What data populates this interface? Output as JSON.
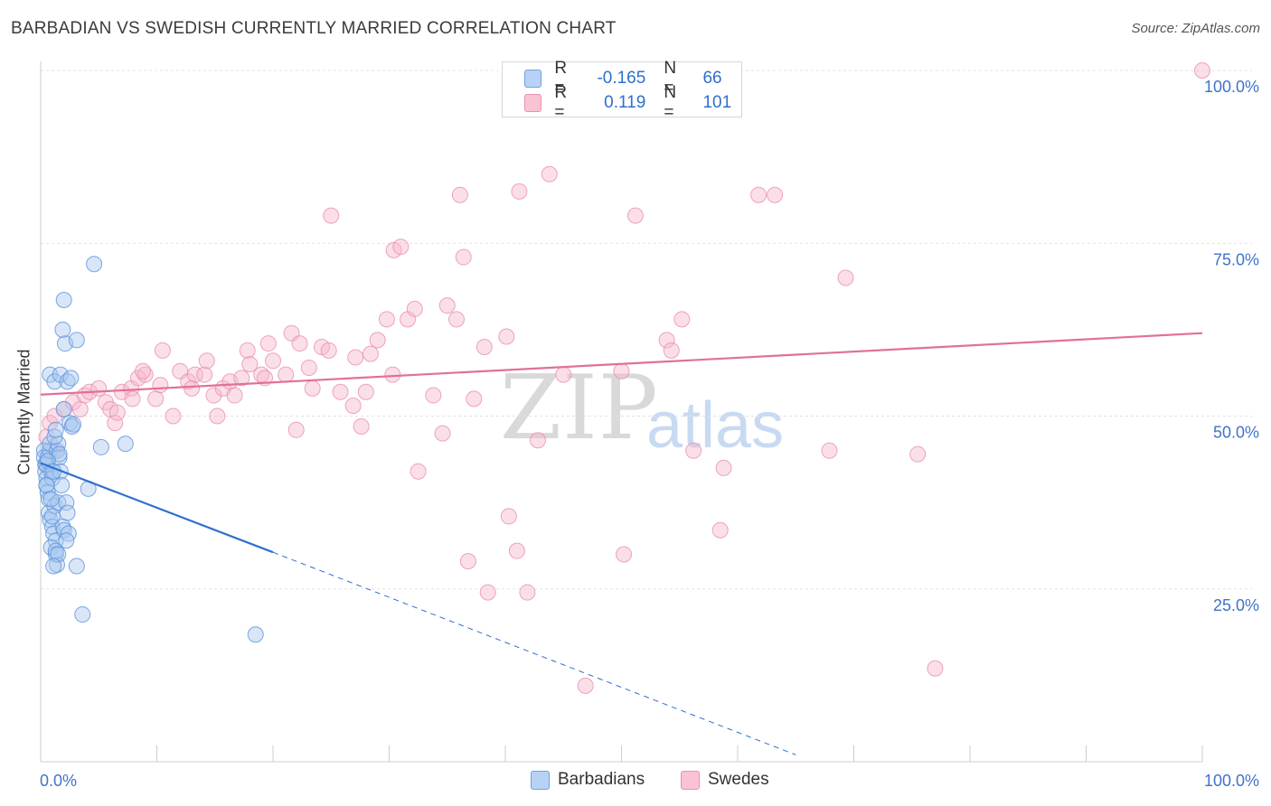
{
  "header": {
    "title": "BARBADIAN VS SWEDISH CURRENTLY MARRIED CORRELATION CHART",
    "source": "Source: ZipAtlas.com"
  },
  "watermark": {
    "zip": "ZIP",
    "atlas": "atlas"
  },
  "legend": {
    "r_label": "R =",
    "n_label": "N =",
    "rows": [
      {
        "name": "Barbadians",
        "r": "-0.165",
        "n": "66",
        "color": "#6fa0e0"
      },
      {
        "name": "Swedes",
        "r": "0.119",
        "n": "101",
        "color": "#ec8fb0"
      }
    ]
  },
  "bottom_legend": {
    "item1": "Barbadians",
    "item2": "Swedes"
  },
  "colors": {
    "blue_fill": "#a9c8f0",
    "blue_stroke": "#5c93db",
    "blue_line": "#2f6fcf",
    "pink_fill": "#f7b9cc",
    "pink_stroke": "#e98fb0",
    "pink_line": "#e0709a",
    "grid": "#e3e3e3",
    "axis_label": "#3f73c8"
  },
  "chart_data": {
    "type": "scatter",
    "title": "BARBADIAN VS SWEDISH CURRENTLY MARRIED CORRELATION CHART",
    "xlabel": "",
    "ylabel": "Currently Married",
    "xlim": [
      0,
      100
    ],
    "ylim": [
      0,
      100
    ],
    "x_tick_labels": [
      "0.0%",
      "100.0%"
    ],
    "y_tick_labels": [
      "25.0%",
      "50.0%",
      "75.0%",
      "100.0%"
    ],
    "y_ticks": [
      25,
      50,
      75,
      100
    ],
    "series": [
      {
        "name": "Barbadians",
        "r": -0.165,
        "n": 66,
        "trend": {
          "x0": 0,
          "y0": 43.2,
          "x1": 20,
          "y1": 30.3,
          "dash_to_x": 65,
          "dash_to_y": 1
        },
        "points": [
          [
            0.3,
            45
          ],
          [
            0.3,
            44
          ],
          [
            0.4,
            43
          ],
          [
            0.4,
            42
          ],
          [
            0.5,
            41
          ],
          [
            0.5,
            40
          ],
          [
            0.6,
            39
          ],
          [
            0.7,
            38
          ],
          [
            0.5,
            43
          ],
          [
            0.6,
            44
          ],
          [
            0.8,
            45
          ],
          [
            0.8,
            46
          ],
          [
            0.9,
            42
          ],
          [
            1.0,
            41
          ],
          [
            0.7,
            36
          ],
          [
            0.8,
            35
          ],
          [
            1.0,
            34
          ],
          [
            1.1,
            33
          ],
          [
            1.2,
            37
          ],
          [
            1.3,
            32
          ],
          [
            0.9,
            31
          ],
          [
            1.3,
            30
          ],
          [
            1.4,
            28.5
          ],
          [
            1.4,
            45
          ],
          [
            1.5,
            46
          ],
          [
            1.6,
            44
          ],
          [
            1.7,
            42
          ],
          [
            1.8,
            40
          ],
          [
            1.2,
            47
          ],
          [
            1.3,
            48
          ],
          [
            0.8,
            56
          ],
          [
            1.2,
            55
          ],
          [
            1.7,
            56
          ],
          [
            2.3,
            55
          ],
          [
            2.6,
            55.5
          ],
          [
            2.0,
            51
          ],
          [
            2.5,
            49
          ],
          [
            2.7,
            48.5
          ],
          [
            2.1,
            60.5
          ],
          [
            3.1,
            61
          ],
          [
            1.9,
            62.5
          ],
          [
            2.0,
            66.8
          ],
          [
            4.6,
            72
          ],
          [
            1.5,
            37.5
          ],
          [
            2.2,
            37.5
          ],
          [
            1.9,
            34
          ],
          [
            2.3,
            36
          ],
          [
            2.0,
            33.5
          ],
          [
            2.4,
            33
          ],
          [
            2.2,
            32
          ],
          [
            1.3,
            30.5
          ],
          [
            1.5,
            30
          ],
          [
            1.1,
            28.3
          ],
          [
            3.1,
            28.3
          ],
          [
            3.6,
            21.3
          ],
          [
            4.1,
            39.5
          ],
          [
            5.2,
            45.5
          ],
          [
            7.3,
            46
          ],
          [
            18.5,
            18.4
          ],
          [
            0.5,
            40
          ],
          [
            0.9,
            38
          ],
          [
            1.0,
            35.5
          ],
          [
            1.6,
            44.5
          ],
          [
            0.6,
            43.5
          ],
          [
            2.8,
            48.8
          ],
          [
            1.1,
            42
          ]
        ]
      },
      {
        "name": "Swedes",
        "r": 0.119,
        "n": 101,
        "trend": {
          "x0": 0,
          "y0": 53.1,
          "x1": 100,
          "y1": 62
        },
        "points": [
          [
            0.5,
            47
          ],
          [
            0.8,
            49
          ],
          [
            1.2,
            50
          ],
          [
            2.0,
            51
          ],
          [
            2.8,
            52
          ],
          [
            3.8,
            53
          ],
          [
            4.2,
            53.5
          ],
          [
            5.6,
            52
          ],
          [
            6.0,
            51
          ],
          [
            6.4,
            49
          ],
          [
            6.6,
            50.5
          ],
          [
            7.0,
            53.5
          ],
          [
            7.8,
            54
          ],
          [
            7.9,
            52.5
          ],
          [
            8.4,
            55.5
          ],
          [
            9.0,
            56
          ],
          [
            9.9,
            52.5
          ],
          [
            10.3,
            54.5
          ],
          [
            10.5,
            59.5
          ],
          [
            11.4,
            50
          ],
          [
            12.0,
            56.5
          ],
          [
            12.7,
            55
          ],
          [
            13.0,
            54
          ],
          [
            13.3,
            56
          ],
          [
            14.1,
            56
          ],
          [
            14.3,
            58
          ],
          [
            14.9,
            53
          ],
          [
            15.2,
            50
          ],
          [
            15.7,
            54
          ],
          [
            16.3,
            55
          ],
          [
            16.7,
            53
          ],
          [
            17.3,
            55.5
          ],
          [
            17.8,
            59.5
          ],
          [
            18.0,
            57.5
          ],
          [
            19.0,
            56
          ],
          [
            19.3,
            55.5
          ],
          [
            20.0,
            58
          ],
          [
            19.6,
            60.5
          ],
          [
            21.1,
            56
          ],
          [
            21.6,
            62
          ],
          [
            22.0,
            48
          ],
          [
            22.3,
            60.5
          ],
          [
            23.1,
            57
          ],
          [
            23.4,
            54
          ],
          [
            24.2,
            60
          ],
          [
            24.8,
            59.5
          ],
          [
            25.0,
            79
          ],
          [
            25.8,
            53.5
          ],
          [
            26.9,
            51.5
          ],
          [
            27.1,
            58.5
          ],
          [
            27.6,
            48.5
          ],
          [
            28.0,
            53.5
          ],
          [
            28.4,
            59
          ],
          [
            29.0,
            61
          ],
          [
            29.8,
            64
          ],
          [
            30.3,
            56
          ],
          [
            30.4,
            74
          ],
          [
            31.0,
            74.5
          ],
          [
            31.6,
            64
          ],
          [
            32.2,
            65.5
          ],
          [
            32.5,
            42
          ],
          [
            33.8,
            53
          ],
          [
            34.6,
            47.5
          ],
          [
            35.0,
            66
          ],
          [
            35.8,
            64
          ],
          [
            36.1,
            82
          ],
          [
            36.4,
            73
          ],
          [
            36.8,
            29
          ],
          [
            37.3,
            52.5
          ],
          [
            38.2,
            60
          ],
          [
            38.5,
            24.5
          ],
          [
            40.1,
            61.5
          ],
          [
            40.3,
            35.5
          ],
          [
            41.0,
            30.5
          ],
          [
            41.2,
            82.5
          ],
          [
            41.9,
            24.5
          ],
          [
            42.8,
            46.5
          ],
          [
            43.8,
            85
          ],
          [
            45.0,
            56
          ],
          [
            47.3,
            100
          ],
          [
            50.0,
            56.5
          ],
          [
            50.2,
            30
          ],
          [
            51.2,
            79
          ],
          [
            53.9,
            61
          ],
          [
            54.3,
            59.5
          ],
          [
            56.2,
            45
          ],
          [
            58.5,
            33.5
          ],
          [
            58.8,
            42.5
          ],
          [
            63.2,
            82
          ],
          [
            67.9,
            45
          ],
          [
            69.3,
            70
          ],
          [
            75.5,
            44.5
          ],
          [
            77.0,
            13.5
          ],
          [
            100.0,
            100
          ],
          [
            61.8,
            82
          ],
          [
            55.2,
            64
          ],
          [
            46.9,
            11
          ],
          [
            3.4,
            51
          ],
          [
            5.0,
            54
          ],
          [
            8.8,
            56.5
          ],
          [
            1.1,
            45
          ]
        ]
      }
    ]
  }
}
